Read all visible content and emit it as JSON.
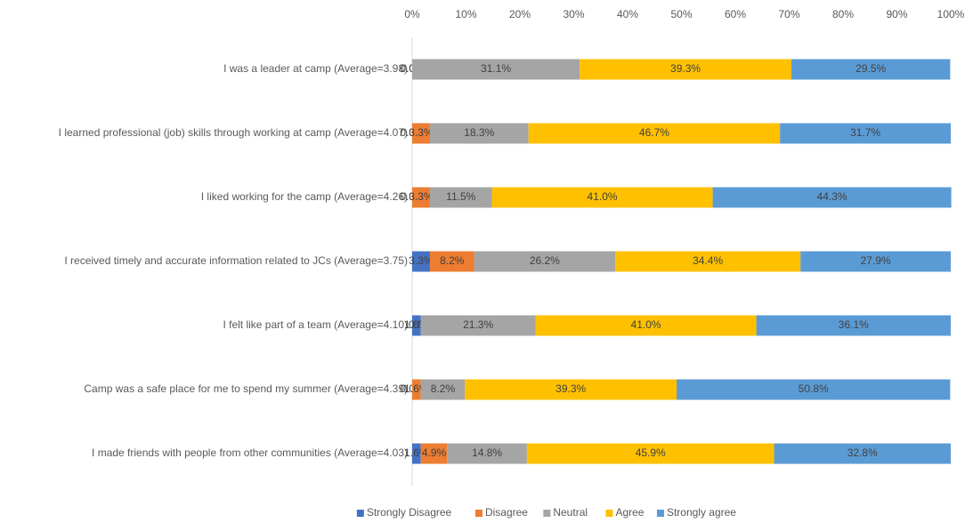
{
  "chart_data": {
    "type": "stacked_bar_horizontal",
    "categories": [
      "I was a leader at camp (Average=3.98)",
      "I learned professional (job) skills through working at camp (Average=4.07)",
      "I liked working for the camp (Average=4.26)",
      "I received timely and accurate information related to JCs (Average=3.75)",
      "I felt like part of a team (Average=4.10)",
      "Camp was a safe place for me to spend my summer (Average=4.39)",
      "I made friends with people from other communities (Average=4.03)"
    ],
    "series": [
      {
        "name": "Strongly Disagree",
        "color": "#4472c4",
        "values": [
          0.0,
          0.0,
          0.0,
          3.3,
          1.6,
          0.0,
          1.6
        ],
        "value_labels": [
          "0.0%",
          "0.0%",
          "0.0%",
          "3.3%",
          "1.6%",
          "0.0%",
          "1.6%"
        ]
      },
      {
        "name": "Disagree",
        "color": "#ed7d31",
        "values": [
          0.0,
          3.3,
          3.3,
          8.2,
          0.0,
          1.6,
          4.9
        ],
        "value_labels": [
          "0.0%",
          "3.3%",
          "3.3%",
          "8.2%",
          "0.0%",
          "1.6%",
          "4.9%"
        ]
      },
      {
        "name": "Neutral",
        "color": "#a5a5a5",
        "values": [
          31.1,
          18.3,
          11.5,
          26.2,
          21.3,
          8.2,
          14.8
        ],
        "value_labels": [
          "31.1%",
          "18.3%",
          "11.5%",
          "26.2%",
          "21.3%",
          "8.2%",
          "14.8%"
        ]
      },
      {
        "name": "Agree",
        "color": "#ffc000",
        "values": [
          39.3,
          46.7,
          41.0,
          34.4,
          41.0,
          39.3,
          45.9
        ],
        "value_labels": [
          "39.3%",
          "46.7%",
          "41.0%",
          "34.4%",
          "41.0%",
          "39.3%",
          "45.9%"
        ]
      },
      {
        "name": "Strongly agree",
        "color": "#5b9bd5",
        "values": [
          29.5,
          31.7,
          44.3,
          27.9,
          36.1,
          50.8,
          32.8
        ],
        "value_labels": [
          "29.5%",
          "31.7%",
          "44.3%",
          "27.9%",
          "36.1%",
          "50.8%",
          "32.8%"
        ]
      }
    ],
    "xlim": [
      0,
      100
    ],
    "xticks": [
      {
        "value": 0,
        "label": "0%"
      },
      {
        "value": 10,
        "label": "10%"
      },
      {
        "value": 20,
        "label": "20%"
      },
      {
        "value": 30,
        "label": "30%"
      },
      {
        "value": 40,
        "label": "40%"
      },
      {
        "value": 50,
        "label": "50%"
      },
      {
        "value": 60,
        "label": "60%"
      },
      {
        "value": 70,
        "label": "70%"
      },
      {
        "value": 80,
        "label": "80%"
      },
      {
        "value": 90,
        "label": "90%"
      },
      {
        "value": 100,
        "label": "100%"
      }
    ],
    "legend": "bottom"
  }
}
